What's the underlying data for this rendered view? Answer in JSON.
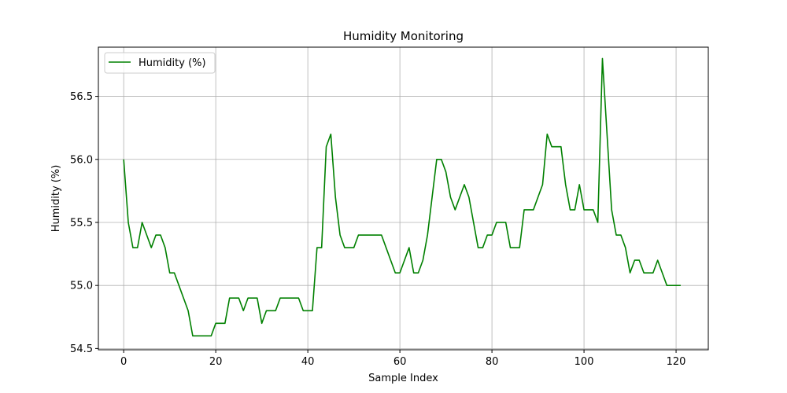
{
  "chart_data": {
    "type": "line",
    "title": "Humidity Monitoring",
    "xlabel": "Sample Index",
    "ylabel": "Humidity (%)",
    "xlim": [
      -5.5,
      127
    ],
    "ylim": [
      54.49,
      56.89
    ],
    "xticks": [
      0,
      20,
      40,
      60,
      80,
      100,
      120
    ],
    "yticks": [
      54.5,
      55.0,
      55.5,
      56.0,
      56.5
    ],
    "ytick_labels": [
      "54.5",
      "55.0",
      "55.5",
      "56.0",
      "56.5"
    ],
    "grid": true,
    "legend_position": "top-left",
    "series": [
      {
        "name": "Humidity (%)",
        "color": "#008000",
        "x": [
          0,
          1,
          2,
          3,
          4,
          5,
          6,
          7,
          8,
          9,
          10,
          11,
          12,
          13,
          14,
          15,
          16,
          17,
          18,
          19,
          20,
          21,
          22,
          23,
          24,
          25,
          26,
          27,
          28,
          29,
          30,
          31,
          32,
          33,
          34,
          35,
          36,
          37,
          38,
          39,
          40,
          41,
          42,
          43,
          44,
          45,
          46,
          47,
          48,
          49,
          50,
          51,
          52,
          53,
          54,
          55,
          56,
          57,
          58,
          59,
          60,
          61,
          62,
          63,
          64,
          65,
          66,
          67,
          68,
          69,
          70,
          71,
          72,
          73,
          74,
          75,
          76,
          77,
          78,
          79,
          80,
          81,
          82,
          83,
          84,
          85,
          86,
          87,
          88,
          89,
          90,
          91,
          92,
          93,
          94,
          95,
          96,
          97,
          98,
          99,
          100,
          101,
          102,
          103,
          104,
          105,
          106,
          107,
          108,
          109,
          110,
          111,
          112,
          113,
          114,
          115,
          116,
          117,
          118,
          119,
          120,
          121
        ],
        "values": [
          56.0,
          55.5,
          55.3,
          55.3,
          55.5,
          55.4,
          55.3,
          55.4,
          55.4,
          55.3,
          55.1,
          55.1,
          55.0,
          54.9,
          54.8,
          54.6,
          54.6,
          54.6,
          54.6,
          54.6,
          54.7,
          54.7,
          54.7,
          54.9,
          54.9,
          54.9,
          54.8,
          54.9,
          54.9,
          54.9,
          54.7,
          54.8,
          54.8,
          54.8,
          54.9,
          54.9,
          54.9,
          54.9,
          54.9,
          54.8,
          54.8,
          54.8,
          55.3,
          55.3,
          56.1,
          56.2,
          55.7,
          55.4,
          55.3,
          55.3,
          55.3,
          55.4,
          55.4,
          55.4,
          55.4,
          55.4,
          55.4,
          55.3,
          55.2,
          55.1,
          55.1,
          55.2,
          55.3,
          55.1,
          55.1,
          55.2,
          55.4,
          55.7,
          56.0,
          56.0,
          55.9,
          55.7,
          55.6,
          55.7,
          55.8,
          55.7,
          55.5,
          55.3,
          55.3,
          55.4,
          55.4,
          55.5,
          55.5,
          55.5,
          55.3,
          55.3,
          55.3,
          55.6,
          55.6,
          55.6,
          55.7,
          55.8,
          56.2,
          56.1,
          56.1,
          56.1,
          55.8,
          55.6,
          55.6,
          55.8,
          55.6,
          55.6,
          55.6,
          55.5,
          56.8,
          56.2,
          55.6,
          55.4,
          55.4,
          55.3,
          55.1,
          55.2,
          55.2,
          55.1,
          55.1,
          55.1,
          55.2,
          55.1,
          55.0,
          55.0,
          55.0,
          55.0
        ]
      }
    ]
  }
}
